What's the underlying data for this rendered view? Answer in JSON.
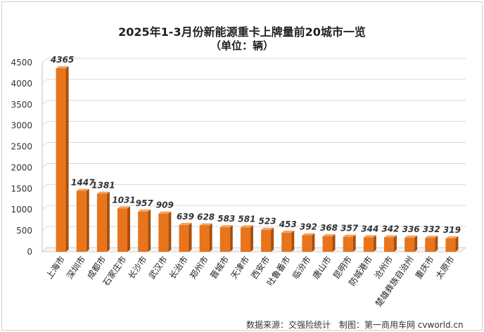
{
  "chart_data": {
    "type": "bar",
    "title": "2025年1-3月份新能源重卡上牌量前20城市一览",
    "subtitle": "（单位：辆）",
    "categories": [
      "上海市",
      "深圳市",
      "成都市",
      "石家庄市",
      "长沙市",
      "武汉市",
      "长治市",
      "郑州市",
      "晋城市",
      "天津市",
      "西安市",
      "吐鲁番市",
      "临汾市",
      "唐山市",
      "昆明市",
      "防城港市",
      "沧州市",
      "楚雄彝族自治州",
      "重庆市",
      "太原市"
    ],
    "values": [
      4365,
      1447,
      1381,
      1031,
      957,
      909,
      639,
      628,
      583,
      581,
      523,
      453,
      392,
      368,
      357,
      344,
      342,
      336,
      332,
      319
    ],
    "ylim": [
      0,
      4500
    ],
    "yticks": [
      "0",
      "500",
      "1000",
      "1500",
      "2000",
      "2500",
      "3000",
      "3500",
      "4000",
      "4500"
    ],
    "grid": true,
    "bar_color": "#e8741c"
  },
  "footer": "数据来源：交强险统计　制图：第一商用车网 cvworld.cn"
}
